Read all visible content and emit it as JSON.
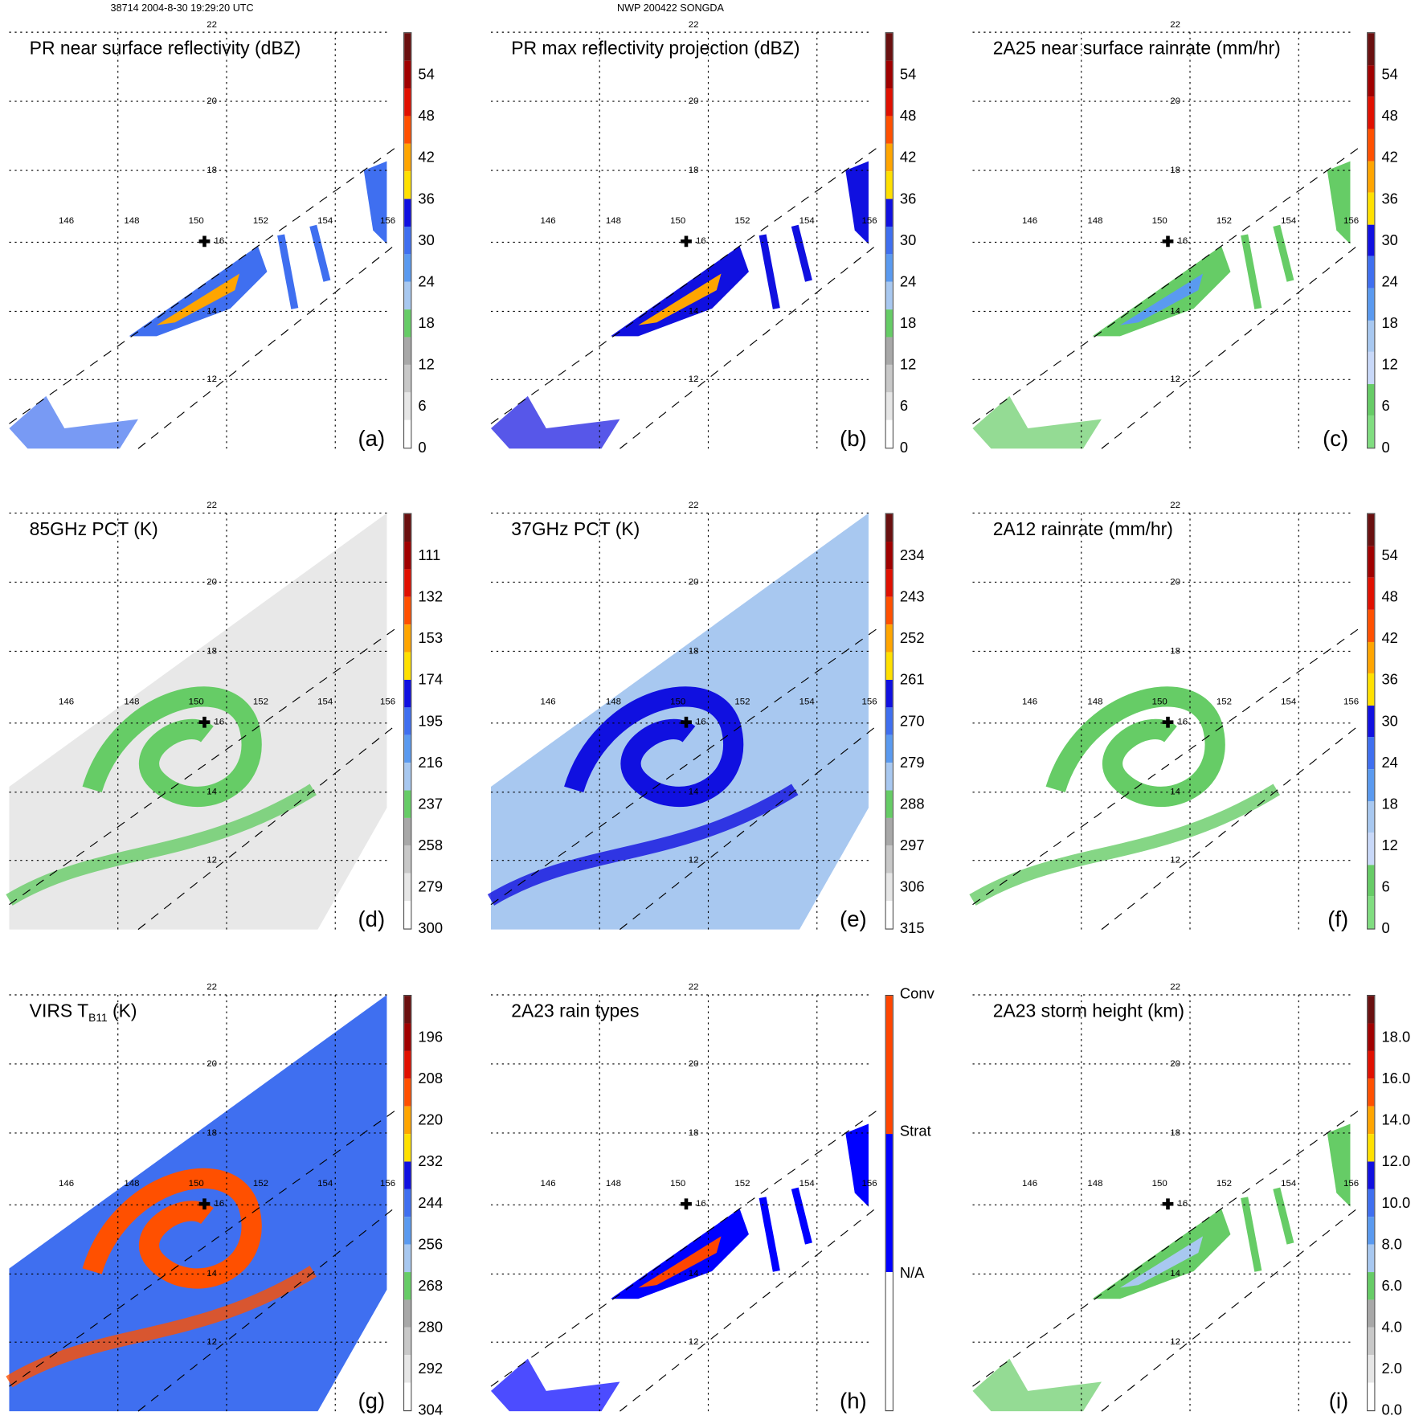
{
  "header": {
    "left": "38714 2004-8-30 19:29:20 UTC",
    "center": "NWP 200422 SONGDA"
  },
  "grid": {
    "lon_labels": [
      "146",
      "148",
      "150",
      "152",
      "154",
      "156"
    ],
    "lat_labels": [
      "22",
      "20",
      "18",
      "16",
      "14",
      "12"
    ]
  },
  "panels": [
    {
      "title": "PR near surface reflectivity (dBZ)",
      "label": "(a)",
      "swath": "narrow",
      "ticks": [
        "0",
        "6",
        "12",
        "18",
        "24",
        "30",
        "36",
        "42",
        "48",
        "54"
      ],
      "colors": [
        "#ffffff",
        "#e6e6e6",
        "#c8c8c8",
        "#a8a8a8",
        "#66cc66",
        "#a8c8f0",
        "#5a9af0",
        "#3f6ff0",
        "#1010e0",
        "#ffe000",
        "#ffa500",
        "#ff5000",
        "#e01000",
        "#a00000",
        "#6a1010"
      ]
    },
    {
      "title": "PR max reflectivity projection (dBZ)",
      "label": "(b)",
      "swath": "narrow",
      "ticks": [
        "0",
        "6",
        "12",
        "18",
        "24",
        "30",
        "36",
        "42",
        "48",
        "54"
      ],
      "colors": [
        "#ffffff",
        "#e6e6e6",
        "#c8c8c8",
        "#a8a8a8",
        "#66cc66",
        "#a8c8f0",
        "#5a9af0",
        "#3f6ff0",
        "#1010e0",
        "#ffe000",
        "#ffa500",
        "#ff5000",
        "#e01000",
        "#a00000",
        "#6a1010"
      ]
    },
    {
      "title": "2A25 near surface rainrate (mm/hr)",
      "label": "(c)",
      "swath": "narrow",
      "ticks": [
        "0",
        "6",
        "12",
        "18",
        "24",
        "30",
        "36",
        "42",
        "48",
        "54"
      ],
      "colors": [
        "#80dd80",
        "#66cc66",
        "#c8d8f8",
        "#a8c8f0",
        "#5a9af0",
        "#3f6ff0",
        "#1010e0",
        "#ffe000",
        "#ffa500",
        "#ff5000",
        "#e01000",
        "#a00000",
        "#6a1010"
      ]
    },
    {
      "title": "85GHz PCT (K)",
      "label": "(d)",
      "swath": "wide",
      "ticks": [
        "300",
        "279",
        "258",
        "237",
        "216",
        "195",
        "174",
        "153",
        "132",
        "111"
      ],
      "colors": [
        "#ffffff",
        "#e6e6e6",
        "#c8c8c8",
        "#a8a8a8",
        "#66cc66",
        "#a8c8f0",
        "#5a9af0",
        "#3f6ff0",
        "#1010e0",
        "#ffe000",
        "#ffa500",
        "#ff5000",
        "#e01000",
        "#a00000",
        "#6a1010"
      ]
    },
    {
      "title": "37GHz PCT (K)",
      "label": "(e)",
      "swath": "wide",
      "ticks": [
        "315",
        "306",
        "297",
        "288",
        "279",
        "270",
        "261",
        "252",
        "243",
        "234"
      ],
      "colors": [
        "#ffffff",
        "#e6e6e6",
        "#c8c8c8",
        "#a8a8a8",
        "#66cc66",
        "#a8c8f0",
        "#5a9af0",
        "#3f6ff0",
        "#1010e0",
        "#ffe000",
        "#ffa500",
        "#ff5000",
        "#e01000",
        "#a00000",
        "#6a1010"
      ]
    },
    {
      "title": "2A12 rainrate (mm/hr)",
      "label": "(f)",
      "swath": "wide",
      "ticks": [
        "0",
        "6",
        "12",
        "18",
        "24",
        "30",
        "36",
        "42",
        "48",
        "54"
      ],
      "colors": [
        "#80dd80",
        "#66cc66",
        "#c8d8f8",
        "#a8c8f0",
        "#5a9af0",
        "#3f6ff0",
        "#1010e0",
        "#ffe000",
        "#ffa500",
        "#ff5000",
        "#e01000",
        "#a00000",
        "#6a1010"
      ]
    },
    {
      "title": "VIRS T",
      "title_sub": "B11",
      "title_suffix": " (K)",
      "label": "(g)",
      "swath": "wide",
      "ticks": [
        "304",
        "292",
        "280",
        "268",
        "256",
        "244",
        "232",
        "220",
        "208",
        "196"
      ],
      "colors": [
        "#ffffff",
        "#e6e6e6",
        "#c8c8c8",
        "#a8a8a8",
        "#66cc66",
        "#a8c8f0",
        "#5a9af0",
        "#3f6ff0",
        "#1010e0",
        "#ffe000",
        "#ffa500",
        "#ff5000",
        "#e01000",
        "#a00000",
        "#6a1010"
      ]
    },
    {
      "title": "2A23 rain types",
      "label": "(h)",
      "swath": "narrow",
      "ticks": [
        "N/A",
        "Strat",
        "Conv"
      ],
      "tick_pos": [
        0.33,
        0.67,
        1.0
      ],
      "colors": [
        "#ffffff",
        "#0000ff",
        "#ff4500"
      ]
    },
    {
      "title": "2A23 storm height (km)",
      "label": "(i)",
      "swath": "narrow",
      "ticks": [
        "0.0",
        "2.0",
        "4.0",
        "6.0",
        "8.0",
        "10.0",
        "12.0",
        "14.0",
        "16.0",
        "18.0"
      ],
      "colors": [
        "#ffffff",
        "#e6e6e6",
        "#c8c8c8",
        "#a8a8a8",
        "#66cc66",
        "#a8c8f0",
        "#5a9af0",
        "#3f6ff0",
        "#1010e0",
        "#ffe000",
        "#ffa500",
        "#ff5000",
        "#e01000",
        "#a00000",
        "#6a1010"
      ]
    }
  ]
}
